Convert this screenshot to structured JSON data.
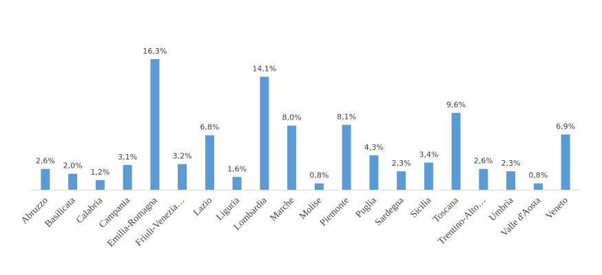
{
  "chart_data": {
    "type": "bar",
    "title": "",
    "xlabel": "",
    "ylabel": "",
    "categories": [
      "Abruzzo",
      "Basilicata",
      "Calabria",
      "Campania",
      "Emilia-Romagna",
      "Friuli-Venezia…",
      "Lazio",
      "Liguria",
      "Lombardia",
      "Marche",
      "Molise",
      "Piemonte",
      "Puglia",
      "Sardegna",
      "Sicilia",
      "Toscana",
      "Trentino-Alto…",
      "Umbria",
      "Valle d'Aosta",
      "Veneto"
    ],
    "values": [
      2.6,
      2.0,
      1.2,
      3.1,
      16.3,
      3.2,
      6.8,
      1.6,
      14.1,
      8.0,
      0.8,
      8.1,
      4.3,
      2.3,
      3.4,
      9.6,
      2.6,
      2.3,
      0.8,
      6.9
    ],
    "value_labels": [
      "2,6%",
      "2,0%",
      "1,2%",
      "3,1%",
      "16,3%",
      "3,2%",
      "6,8%",
      "1,6%",
      "14,1%",
      "8,0%",
      "0,8%",
      "8,1%",
      "4,3%",
      "2,3%",
      "3,4%",
      "9,6%",
      "2,6%",
      "2,3%",
      "0,8%",
      "6,9%"
    ],
    "ylim": [
      0,
      16.3
    ],
    "unit": "%",
    "grid": false,
    "legend": "none",
    "colors": {
      "bar": "#5b9bd5",
      "axis": "#d9d9d9",
      "text": "#404040"
    }
  }
}
